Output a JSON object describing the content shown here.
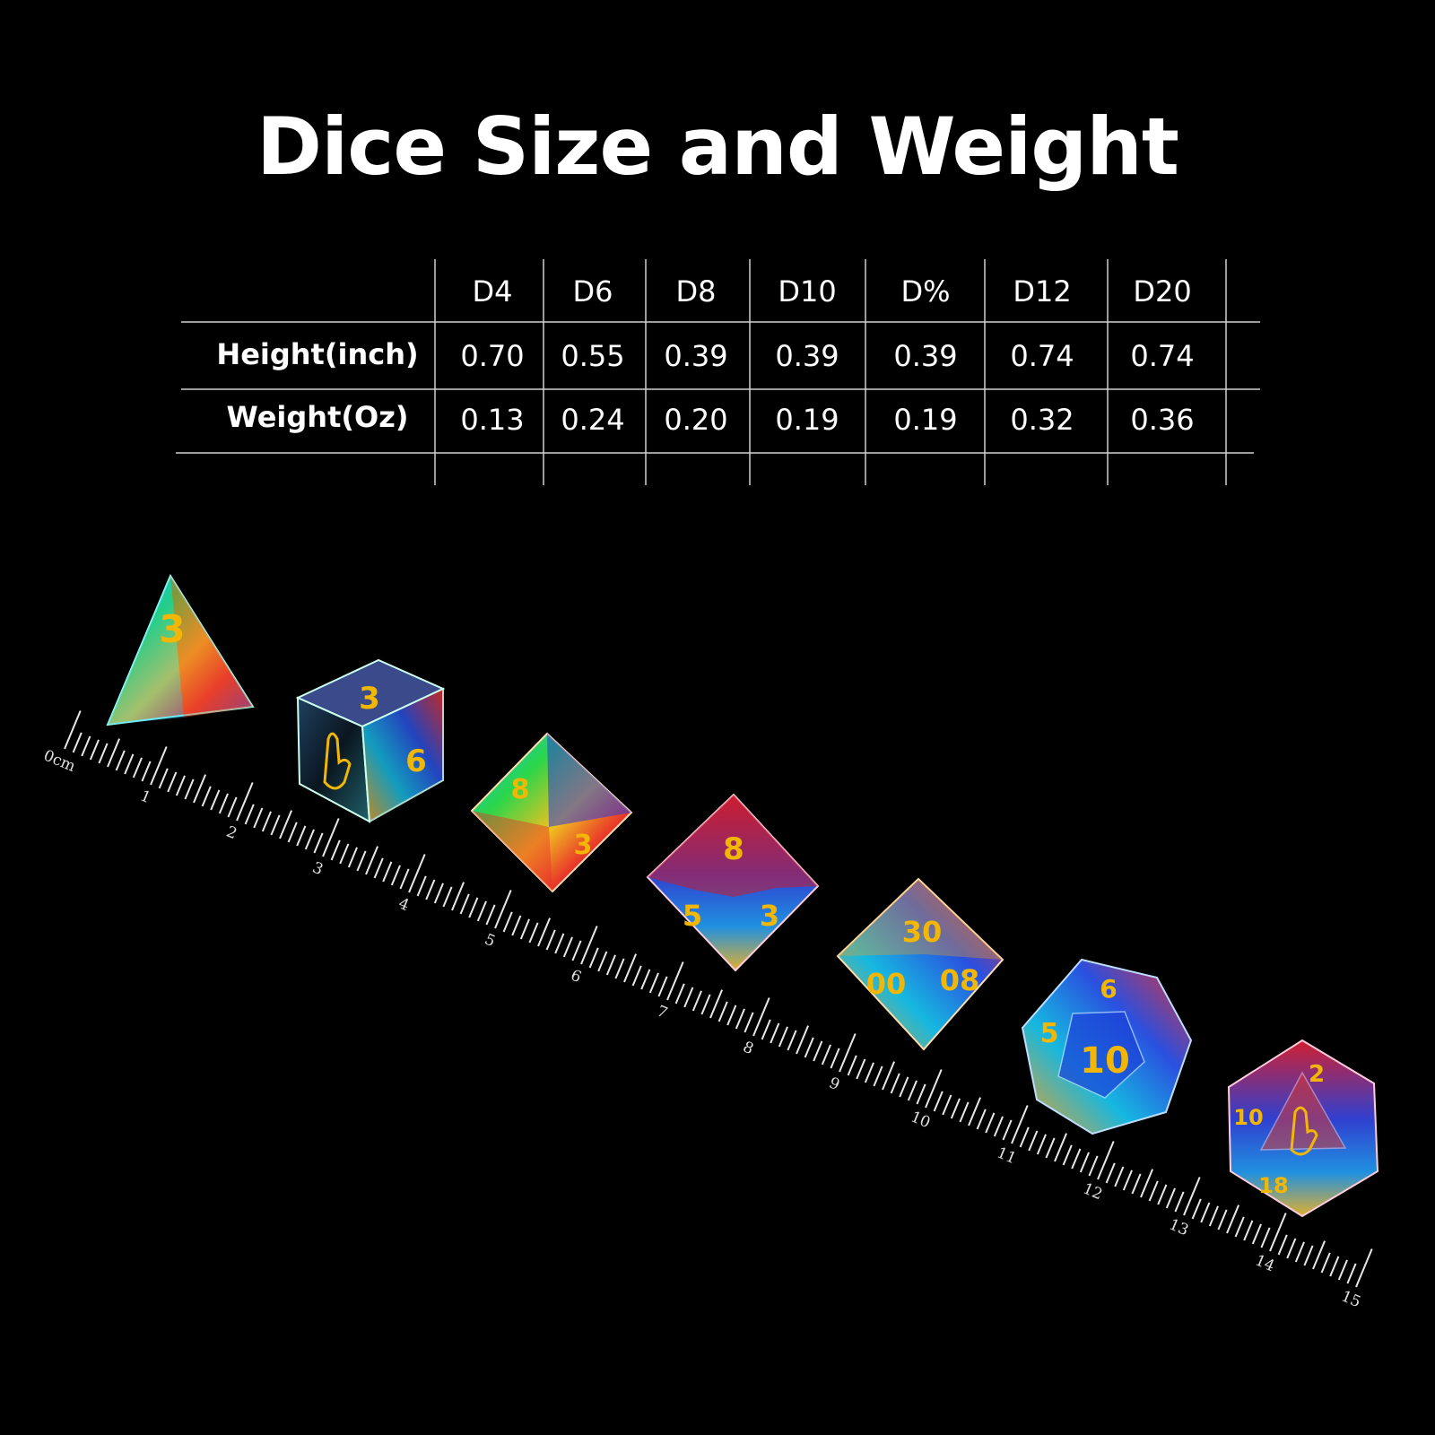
{
  "title": "Dice Size and Weight",
  "table": {
    "columns": [
      "D4",
      "D6",
      "D8",
      "D10",
      "D%",
      "D12",
      "D20"
    ],
    "rows": [
      {
        "label": "Height(inch)",
        "values": [
          "0.70",
          "0.55",
          "0.39",
          "0.39",
          "0.39",
          "0.74",
          "0.74"
        ]
      },
      {
        "label": "Weight(Oz)",
        "values": [
          "0.13",
          "0.24",
          "0.20",
          "0.19",
          "0.19",
          "0.32",
          "0.36"
        ]
      }
    ]
  },
  "ruler": {
    "labels": [
      "0cm",
      "1",
      "2",
      "3",
      "4",
      "5",
      "6",
      "7",
      "8",
      "9",
      "10",
      "11",
      "12",
      "13",
      "14",
      "15"
    ]
  },
  "dice": [
    {
      "kind": "d4",
      "icon": "d4-die-icon",
      "numbers": [
        "3"
      ]
    },
    {
      "kind": "d6",
      "icon": "d6-die-icon",
      "numbers": [
        "3",
        "6"
      ]
    },
    {
      "kind": "d8",
      "icon": "d8-die-icon",
      "numbers": [
        "8",
        "3"
      ]
    },
    {
      "kind": "d10",
      "icon": "d10-die-icon",
      "numbers": [
        "8",
        "5",
        "3"
      ]
    },
    {
      "kind": "d%",
      "icon": "d-percent-die-icon",
      "numbers": [
        "30",
        "00",
        "08"
      ]
    },
    {
      "kind": "d12",
      "icon": "d12-die-icon",
      "numbers": [
        "10",
        "6",
        "5"
      ]
    },
    {
      "kind": "d20",
      "icon": "d20-die-icon",
      "numbers": [
        "2",
        "10",
        "18"
      ]
    }
  ],
  "colors": {
    "background": "#000000",
    "text": "#ffffff",
    "lines": "#cccccc",
    "numerals": "#f2b705"
  }
}
